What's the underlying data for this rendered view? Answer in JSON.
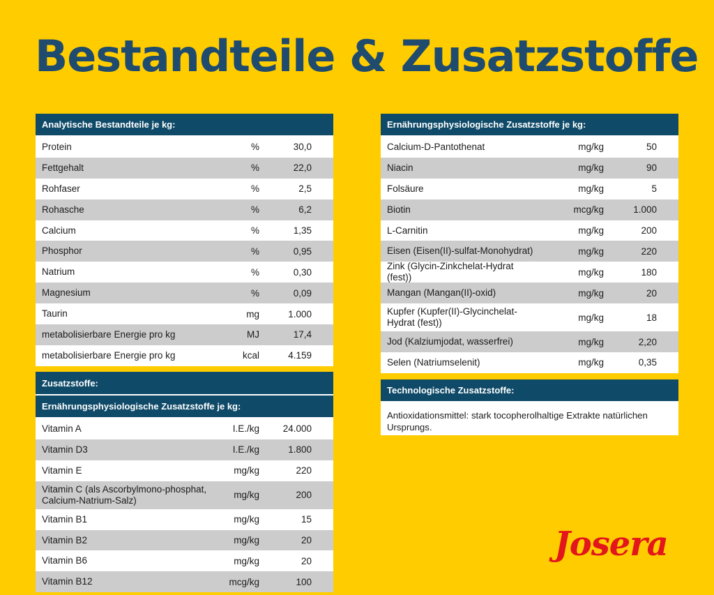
{
  "title": "Bestandteile & Zusatzstoffe",
  "analytic": {
    "header": "Analytische Bestandteile je kg:",
    "rows": [
      {
        "name": "Protein",
        "unit": "%",
        "value": "30,0"
      },
      {
        "name": "Fettgehalt",
        "unit": "%",
        "value": "22,0"
      },
      {
        "name": "Rohfaser",
        "unit": "%",
        "value": "2,5"
      },
      {
        "name": "Rohasche",
        "unit": "%",
        "value": "6,2"
      },
      {
        "name": "Calcium",
        "unit": "%",
        "value": "1,35"
      },
      {
        "name": "Phosphor",
        "unit": "%",
        "value": "0,95"
      },
      {
        "name": "Natrium",
        "unit": "%",
        "value": "0,30"
      },
      {
        "name": "Magnesium",
        "unit": "%",
        "value": "0,09"
      },
      {
        "name": "Taurin",
        "unit": "mg",
        "value": "1.000"
      },
      {
        "name": "metabolisierbare Energie pro kg",
        "unit": "MJ",
        "value": "17,4"
      },
      {
        "name": "metabolisierbare Energie pro kg",
        "unit": "kcal",
        "value": "4.159"
      }
    ]
  },
  "additives": {
    "header": "Zusatzstoffe:",
    "subheader": "Ernährungsphysiologische Zusatzstoffe je kg:",
    "rows": [
      {
        "name": "Vitamin A",
        "unit": "I.E./kg",
        "value": "24.000"
      },
      {
        "name": "Vitamin D3",
        "unit": "I.E./kg",
        "value": "1.800"
      },
      {
        "name": "Vitamin E",
        "unit": "mg/kg",
        "value": "220"
      },
      {
        "name": "Vitamin C (als Ascorbylmono-phosphat, Calcium-Natrium-Salz)",
        "unit": "mg/kg",
        "value": "200"
      },
      {
        "name": "Vitamin B1",
        "unit": "mg/kg",
        "value": "15"
      },
      {
        "name": "Vitamin B2",
        "unit": "mg/kg",
        "value": "20"
      },
      {
        "name": "Vitamin B6",
        "unit": "mg/kg",
        "value": "20"
      },
      {
        "name": "Vitamin B12",
        "unit": "mcg/kg",
        "value": "100"
      }
    ]
  },
  "nutritional": {
    "header": "Ernährungsphysiologische Zusatzstoffe je kg:",
    "rows": [
      {
        "name": "Calcium-D-Pantothenat",
        "unit": "mg/kg",
        "value": "50"
      },
      {
        "name": "Niacin",
        "unit": "mg/kg",
        "value": "90"
      },
      {
        "name": "Folsäure",
        "unit": "mg/kg",
        "value": "5"
      },
      {
        "name": "Biotin",
        "unit": "mcg/kg",
        "value": "1.000"
      },
      {
        "name": "L-Carnitin",
        "unit": "mg/kg",
        "value": "200"
      },
      {
        "name": "Eisen (Eisen(II)-sulfat-Monohydrat)",
        "unit": "mg/kg",
        "value": "220"
      },
      {
        "name": "Zink (Glycin-Zinkchelat-Hydrat (fest))",
        "unit": "mg/kg",
        "value": "180"
      },
      {
        "name": "Mangan (Mangan(II)-oxid)",
        "unit": "mg/kg",
        "value": "20"
      },
      {
        "name": "Kupfer (Kupfer(II)-Glycinchelat-Hydrat (fest))",
        "unit": "mg/kg",
        "value": "18"
      },
      {
        "name": "Jod (Kalziumjodat, wasserfrei)",
        "unit": "mg/kg",
        "value": "2,20"
      },
      {
        "name": "Selen (Natriumselenit)",
        "unit": "mg/kg",
        "value": "0,35"
      }
    ]
  },
  "technological": {
    "header": "Technologische Zusatzstoffe:",
    "text": "Antioxidationsmittel: stark tocopherolhaltige Extrakte natürlichen Ursprungs."
  },
  "brand": "Josera",
  "colors": {
    "background": "#ffcc00",
    "header": "#0f4a68",
    "title": "#1f4b6e",
    "logo": "#e2161b",
    "row_alt": "#cccccc"
  }
}
